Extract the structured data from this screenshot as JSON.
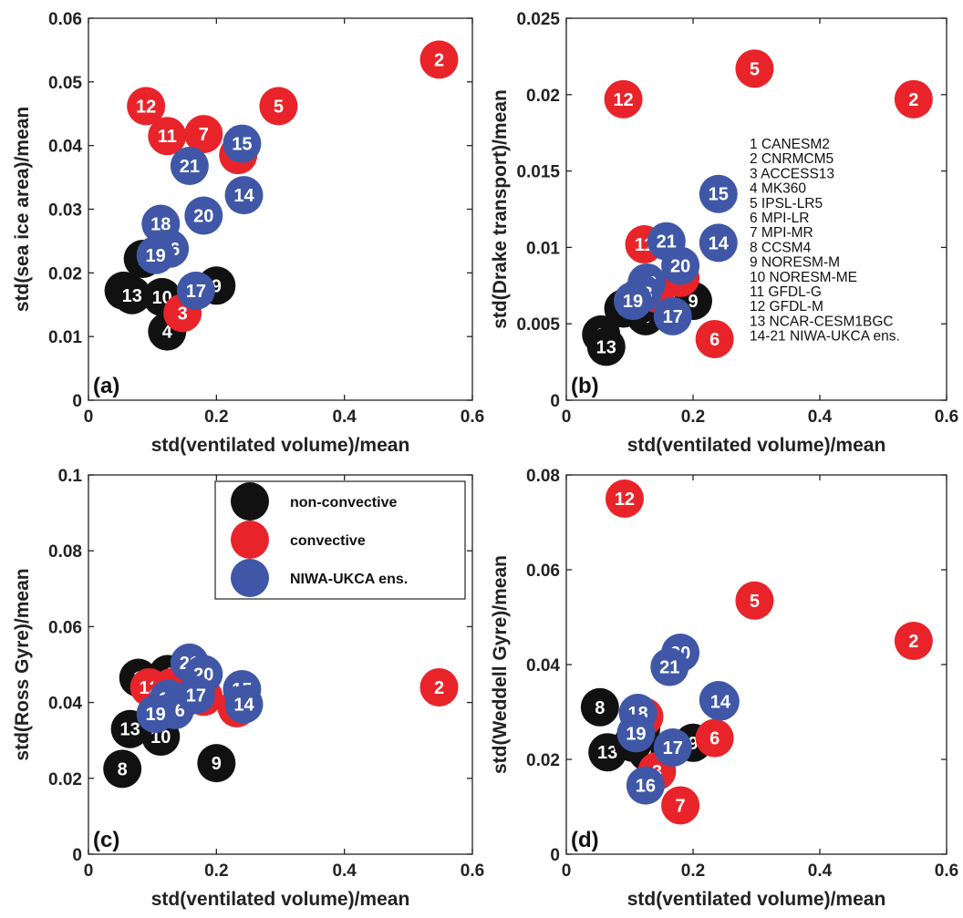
{
  "colors": {
    "non_convective": "#111111",
    "convective": "#e8242a",
    "niwa": "#3f57a6",
    "axis": "#222222"
  },
  "legend": {
    "entries": [
      {
        "label": "non-convective",
        "color": "#111111"
      },
      {
        "label": "convective",
        "color": "#e8242a"
      },
      {
        "label": "NIWA-UKCA ens.",
        "color": "#3f57a6"
      }
    ]
  },
  "model_list": [
    "1 CANESM2",
    "2 CNRMCM5",
    "3 ACCESS13",
    "4 MK360",
    "5 IPSL-LR5",
    "6 MPI-LR",
    "7 MPI-MR",
    "8 CCSM4",
    "9 NORESM-M",
    "10 NORESM-ME",
    "11 GFDL-G",
    "12 GFDL-M",
    "13 NCAR-CESM1BGC",
    "14-21 NIWA-UKCA ens."
  ],
  "chart_data": [
    {
      "type": "scatter",
      "panel": "(a)",
      "xlabel": "std(ventilated volume)/mean",
      "ylabel": "std(sea ice area)/mean",
      "xlim": [
        0,
        0.6
      ],
      "ylim": [
        0,
        0.06
      ],
      "xticks": [
        "0",
        "0.2",
        "0.4",
        "0.6"
      ],
      "yticks": [
        "0",
        "0.01",
        "0.02",
        "0.03",
        "0.04",
        "0.05",
        "0.06"
      ],
      "points": [
        {
          "label": "1",
          "group": "non_convective",
          "x": 0.085,
          "y": 0.0222
        },
        {
          "label": "8",
          "group": "non_convective",
          "x": 0.055,
          "y": 0.0172
        },
        {
          "label": "13",
          "group": "non_convective",
          "x": 0.068,
          "y": 0.0165
        },
        {
          "label": "10",
          "group": "non_convective",
          "x": 0.115,
          "y": 0.0162
        },
        {
          "label": "9",
          "group": "non_convective",
          "x": 0.2,
          "y": 0.018
        },
        {
          "label": "4",
          "group": "non_convective",
          "x": 0.123,
          "y": 0.0108
        },
        {
          "label": "3",
          "group": "convective",
          "x": 0.147,
          "y": 0.0137
        },
        {
          "label": "2",
          "group": "convective",
          "x": 0.548,
          "y": 0.0535
        },
        {
          "label": "5",
          "group": "convective",
          "x": 0.297,
          "y": 0.0462
        },
        {
          "label": "12",
          "group": "convective",
          "x": 0.09,
          "y": 0.0462
        },
        {
          "label": "11",
          "group": "convective",
          "x": 0.123,
          "y": 0.0415
        },
        {
          "label": "7",
          "group": "convective",
          "x": 0.18,
          "y": 0.0418
        },
        {
          "label": "6",
          "group": "convective",
          "x": 0.234,
          "y": 0.0385
        },
        {
          "label": "15",
          "group": "niwa",
          "x": 0.24,
          "y": 0.0403
        },
        {
          "label": "21",
          "group": "niwa",
          "x": 0.158,
          "y": 0.0368
        },
        {
          "label": "14",
          "group": "niwa",
          "x": 0.243,
          "y": 0.0322
        },
        {
          "label": "20",
          "group": "niwa",
          "x": 0.18,
          "y": 0.029
        },
        {
          "label": "18",
          "group": "niwa",
          "x": 0.113,
          "y": 0.0277
        },
        {
          "label": "16",
          "group": "niwa",
          "x": 0.127,
          "y": 0.0238
        },
        {
          "label": "19",
          "group": "niwa",
          "x": 0.105,
          "y": 0.0228
        },
        {
          "label": "17",
          "group": "niwa",
          "x": 0.168,
          "y": 0.0172
        }
      ]
    },
    {
      "type": "scatter",
      "panel": "(b)",
      "xlabel": "std(ventilated volume)/mean",
      "ylabel": "std(Drake transport)/mean",
      "xlim": [
        0,
        0.6
      ],
      "ylim": [
        0,
        0.025
      ],
      "xticks": [
        "0",
        "0.2",
        "0.4",
        "0.6"
      ],
      "yticks": [
        "0",
        "0.005",
        "0.01",
        "0.015",
        "0.02",
        "0.025"
      ],
      "points": [
        {
          "label": "8",
          "group": "non_convective",
          "x": 0.055,
          "y": 0.0043
        },
        {
          "label": "13",
          "group": "non_convective",
          "x": 0.063,
          "y": 0.0035
        },
        {
          "label": "1",
          "group": "non_convective",
          "x": 0.09,
          "y": 0.006
        },
        {
          "label": "4",
          "group": "non_convective",
          "x": 0.125,
          "y": 0.0055
        },
        {
          "label": "10",
          "group": "non_convective",
          "x": 0.113,
          "y": 0.0062
        },
        {
          "label": "9",
          "group": "non_convective",
          "x": 0.2,
          "y": 0.0065
        },
        {
          "label": "3",
          "group": "convective",
          "x": 0.14,
          "y": 0.007
        },
        {
          "label": "7",
          "group": "convective",
          "x": 0.18,
          "y": 0.008
        },
        {
          "label": "12",
          "group": "convective",
          "x": 0.09,
          "y": 0.0197
        },
        {
          "label": "5",
          "group": "convective",
          "x": 0.297,
          "y": 0.0217
        },
        {
          "label": "2",
          "group": "convective",
          "x": 0.548,
          "y": 0.0197
        },
        {
          "label": "6",
          "group": "convective",
          "x": 0.234,
          "y": 0.004
        },
        {
          "label": "11",
          "group": "convective",
          "x": 0.123,
          "y": 0.0102
        },
        {
          "label": "15",
          "group": "niwa",
          "x": 0.24,
          "y": 0.0135
        },
        {
          "label": "21",
          "group": "niwa",
          "x": 0.158,
          "y": 0.0104
        },
        {
          "label": "14",
          "group": "niwa",
          "x": 0.24,
          "y": 0.0103
        },
        {
          "label": "20",
          "group": "niwa",
          "x": 0.18,
          "y": 0.0088
        },
        {
          "label": "16",
          "group": "niwa",
          "x": 0.127,
          "y": 0.0077
        },
        {
          "label": "18",
          "group": "niwa",
          "x": 0.12,
          "y": 0.007
        },
        {
          "label": "19",
          "group": "niwa",
          "x": 0.105,
          "y": 0.0065
        },
        {
          "label": "17",
          "group": "niwa",
          "x": 0.168,
          "y": 0.0055
        }
      ]
    },
    {
      "type": "scatter",
      "panel": "(c)",
      "xlabel": "std(ventilated volume)/mean",
      "ylabel": "std(Ross Gyre)/mean",
      "xlim": [
        0,
        0.6
      ],
      "ylim": [
        0,
        0.1
      ],
      "xticks": [
        "0",
        "0.2",
        "0.4",
        "0.6"
      ],
      "yticks": [
        "0",
        "0.02",
        "0.04",
        "0.06",
        "0.08",
        "0.1"
      ],
      "points": [
        {
          "label": "1",
          "group": "non_convective",
          "x": 0.078,
          "y": 0.0465
        },
        {
          "label": "4",
          "group": "non_convective",
          "x": 0.124,
          "y": 0.0475
        },
        {
          "label": "13",
          "group": "non_convective",
          "x": 0.065,
          "y": 0.033
        },
        {
          "label": "10",
          "group": "non_convective",
          "x": 0.113,
          "y": 0.031
        },
        {
          "label": "8",
          "group": "non_convective",
          "x": 0.053,
          "y": 0.0225
        },
        {
          "label": "9",
          "group": "non_convective",
          "x": 0.2,
          "y": 0.024
        },
        {
          "label": "12",
          "group": "convective",
          "x": 0.095,
          "y": 0.044
        },
        {
          "label": "11",
          "group": "convective",
          "x": 0.13,
          "y": 0.044
        },
        {
          "label": "7",
          "group": "convective",
          "x": 0.18,
          "y": 0.0415
        },
        {
          "label": "6",
          "group": "convective",
          "x": 0.232,
          "y": 0.0385
        },
        {
          "label": "3",
          "group": "convective",
          "x": 0.148,
          "y": 0.041
        },
        {
          "label": "2",
          "group": "convective",
          "x": 0.548,
          "y": 0.044
        },
        {
          "label": "21",
          "group": "niwa",
          "x": 0.158,
          "y": 0.0505
        },
        {
          "label": "20",
          "group": "niwa",
          "x": 0.18,
          "y": 0.0475
        },
        {
          "label": "15",
          "group": "niwa",
          "x": 0.24,
          "y": 0.0435
        },
        {
          "label": "14",
          "group": "niwa",
          "x": 0.243,
          "y": 0.0395
        },
        {
          "label": "18",
          "group": "niwa",
          "x": 0.125,
          "y": 0.041
        },
        {
          "label": "16",
          "group": "niwa",
          "x": 0.135,
          "y": 0.038
        },
        {
          "label": "19",
          "group": "niwa",
          "x": 0.105,
          "y": 0.037
        },
        {
          "label": "17",
          "group": "niwa",
          "x": 0.168,
          "y": 0.042
        }
      ]
    },
    {
      "type": "scatter",
      "panel": "(d)",
      "xlabel": "std(ventilated volume)/mean",
      "ylabel": "std(Weddell Gyre)/mean",
      "xlim": [
        0,
        0.6
      ],
      "ylim": [
        0,
        0.08
      ],
      "xticks": [
        "0",
        "0.2",
        "0.4",
        "0.6"
      ],
      "yticks": [
        "0",
        "0.02",
        "0.04",
        "0.06",
        "0.08"
      ],
      "points": [
        {
          "label": "8",
          "group": "non_convective",
          "x": 0.053,
          "y": 0.031
        },
        {
          "label": "13",
          "group": "non_convective",
          "x": 0.065,
          "y": 0.0215
        },
        {
          "label": "4",
          "group": "non_convective",
          "x": 0.128,
          "y": 0.0215
        },
        {
          "label": "9",
          "group": "non_convective",
          "x": 0.2,
          "y": 0.0235
        },
        {
          "label": "10",
          "group": "non_convective",
          "x": 0.118,
          "y": 0.0265
        },
        {
          "label": "1",
          "group": "non_convective",
          "x": 0.105,
          "y": 0.0235
        },
        {
          "label": "12",
          "group": "convective",
          "x": 0.092,
          "y": 0.075
        },
        {
          "label": "5",
          "group": "convective",
          "x": 0.297,
          "y": 0.0535
        },
        {
          "label": "2",
          "group": "convective",
          "x": 0.548,
          "y": 0.045
        },
        {
          "label": "6",
          "group": "convective",
          "x": 0.234,
          "y": 0.0245
        },
        {
          "label": "11",
          "group": "convective",
          "x": 0.123,
          "y": 0.029
        },
        {
          "label": "3",
          "group": "convective",
          "x": 0.143,
          "y": 0.0175
        },
        {
          "label": "7",
          "group": "convective",
          "x": 0.18,
          "y": 0.0103
        },
        {
          "label": "20",
          "group": "niwa",
          "x": 0.18,
          "y": 0.0425
        },
        {
          "label": "21",
          "group": "niwa",
          "x": 0.163,
          "y": 0.0395
        },
        {
          "label": "15",
          "group": "niwa",
          "x": 0.24,
          "y": 0.0325
        },
        {
          "label": "14",
          "group": "niwa",
          "x": 0.243,
          "y": 0.0322
        },
        {
          "label": "18",
          "group": "niwa",
          "x": 0.113,
          "y": 0.0298
        },
        {
          "label": "19",
          "group": "niwa",
          "x": 0.11,
          "y": 0.0255
        },
        {
          "label": "17",
          "group": "niwa",
          "x": 0.168,
          "y": 0.0225
        },
        {
          "label": "16",
          "group": "niwa",
          "x": 0.125,
          "y": 0.0145
        }
      ]
    }
  ]
}
